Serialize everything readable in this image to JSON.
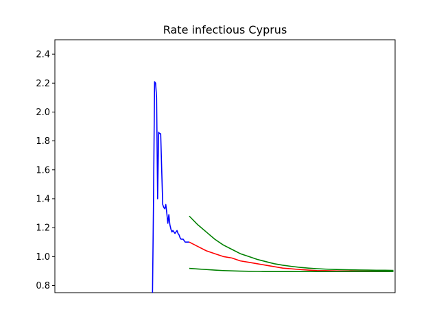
{
  "chart_data": {
    "type": "line",
    "title": "Rate infectious Cyprus",
    "xlabel": "",
    "ylabel": "",
    "ylim": [
      0.75,
      2.5
    ],
    "yticks": [
      "0.8",
      "1.0",
      "1.2",
      "1.4",
      "1.6",
      "1.8",
      "2.0",
      "2.2",
      "2.4"
    ],
    "xticks": [],
    "xlim": [
      0,
      200
    ],
    "grid": false,
    "series": [
      {
        "color": "#0000ff",
        "x": [
          57.4,
          58.0,
          58.6,
          59.2,
          59.8,
          60.4,
          61.0,
          61.6,
          62.2,
          62.8,
          63.4,
          64.0,
          64.6,
          65.2,
          65.8,
          66.4,
          67.0,
          67.6,
          68.2,
          68.8,
          69.4,
          70.0,
          70.6,
          71.2,
          71.8,
          72.4,
          73.0,
          73.6,
          74.2,
          74.8,
          75.4,
          76.0,
          76.6,
          77.2,
          77.8,
          78.4,
          79.0
        ],
        "y": [
          0.75,
          1.4,
          2.21,
          2.2,
          2.1,
          1.4,
          1.86,
          1.85,
          1.85,
          1.6,
          1.36,
          1.34,
          1.33,
          1.36,
          1.3,
          1.23,
          1.29,
          1.22,
          1.19,
          1.17,
          1.18,
          1.17,
          1.16,
          1.17,
          1.18,
          1.16,
          1.15,
          1.13,
          1.12,
          1.12,
          1.12,
          1.11,
          1.1,
          1.1,
          1.1,
          1.1,
          1.1
        ]
      },
      {
        "color": "#ff0000",
        "x": [
          79,
          84,
          89,
          94,
          99,
          104,
          109,
          114,
          119,
          124,
          129,
          134,
          139,
          144,
          149,
          154,
          159,
          164,
          169,
          174,
          179,
          184,
          189,
          194,
          199
        ],
        "y": [
          1.1,
          1.07,
          1.04,
          1.02,
          1.0,
          0.99,
          0.97,
          0.96,
          0.95,
          0.94,
          0.93,
          0.92,
          0.915,
          0.91,
          0.906,
          0.903,
          0.902,
          0.901,
          0.9,
          0.9,
          0.899,
          0.899,
          0.898,
          0.898,
          0.897
        ]
      },
      {
        "color": "#008000",
        "x": [
          79,
          84,
          89,
          94,
          99,
          104,
          109,
          114,
          119,
          124,
          129,
          134,
          139,
          144,
          149,
          154,
          159,
          164,
          169,
          174,
          179,
          184,
          189,
          194,
          199
        ],
        "y": [
          1.28,
          1.22,
          1.17,
          1.12,
          1.08,
          1.05,
          1.02,
          1.0,
          0.98,
          0.965,
          0.95,
          0.94,
          0.932,
          0.925,
          0.92,
          0.916,
          0.913,
          0.911,
          0.909,
          0.908,
          0.907,
          0.906,
          0.905,
          0.905,
          0.904
        ]
      },
      {
        "color": "#008000",
        "x": [
          79,
          84,
          89,
          94,
          99,
          104,
          109,
          114,
          119,
          124,
          129,
          134,
          139,
          144,
          149,
          154,
          159,
          164,
          169,
          174,
          179,
          184,
          189,
          194,
          199
        ],
        "y": [
          0.918,
          0.914,
          0.91,
          0.906,
          0.903,
          0.901,
          0.899,
          0.898,
          0.897,
          0.896,
          0.896,
          0.896,
          0.896,
          0.896,
          0.896,
          0.896,
          0.896,
          0.896,
          0.896,
          0.896,
          0.896,
          0.896,
          0.896,
          0.896,
          0.896
        ]
      }
    ]
  }
}
